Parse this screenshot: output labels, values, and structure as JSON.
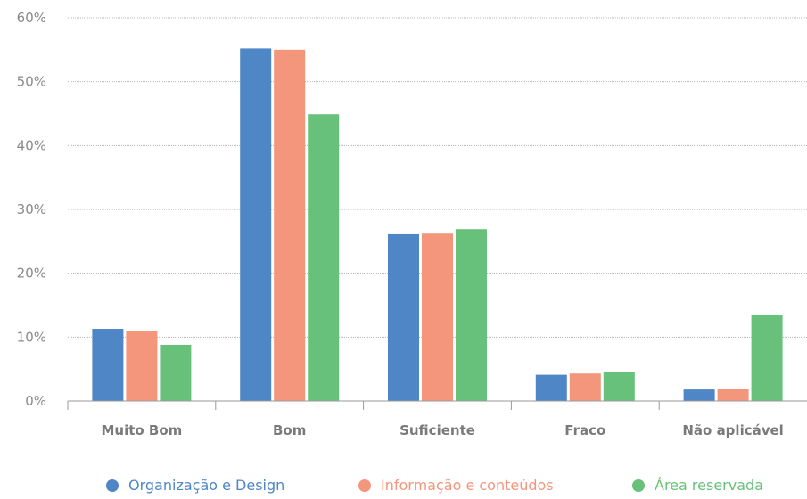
{
  "chart_data": {
    "type": "bar",
    "categories": [
      "Muito Bom",
      "Bom",
      "Suficiente",
      "Fraco",
      "Não aplicável"
    ],
    "series": [
      {
        "name": "Organização e Design",
        "values": [
          11.3,
          55.2,
          26.1,
          4.1,
          1.8
        ],
        "color": "#4f86c6"
      },
      {
        "name": "Informação e conteúdos",
        "values": [
          10.9,
          55.0,
          26.2,
          4.3,
          1.9
        ],
        "color": "#f4967c"
      },
      {
        "name": "Área reservada",
        "values": [
          8.8,
          44.9,
          26.9,
          4.5,
          13.5
        ],
        "color": "#68c17a"
      }
    ],
    "yticks": [
      "0%",
      "10%",
      "20%",
      "30%",
      "40%",
      "50%",
      "60%"
    ],
    "ylim": [
      0,
      60
    ],
    "grid": true,
    "legend": "bottom"
  }
}
